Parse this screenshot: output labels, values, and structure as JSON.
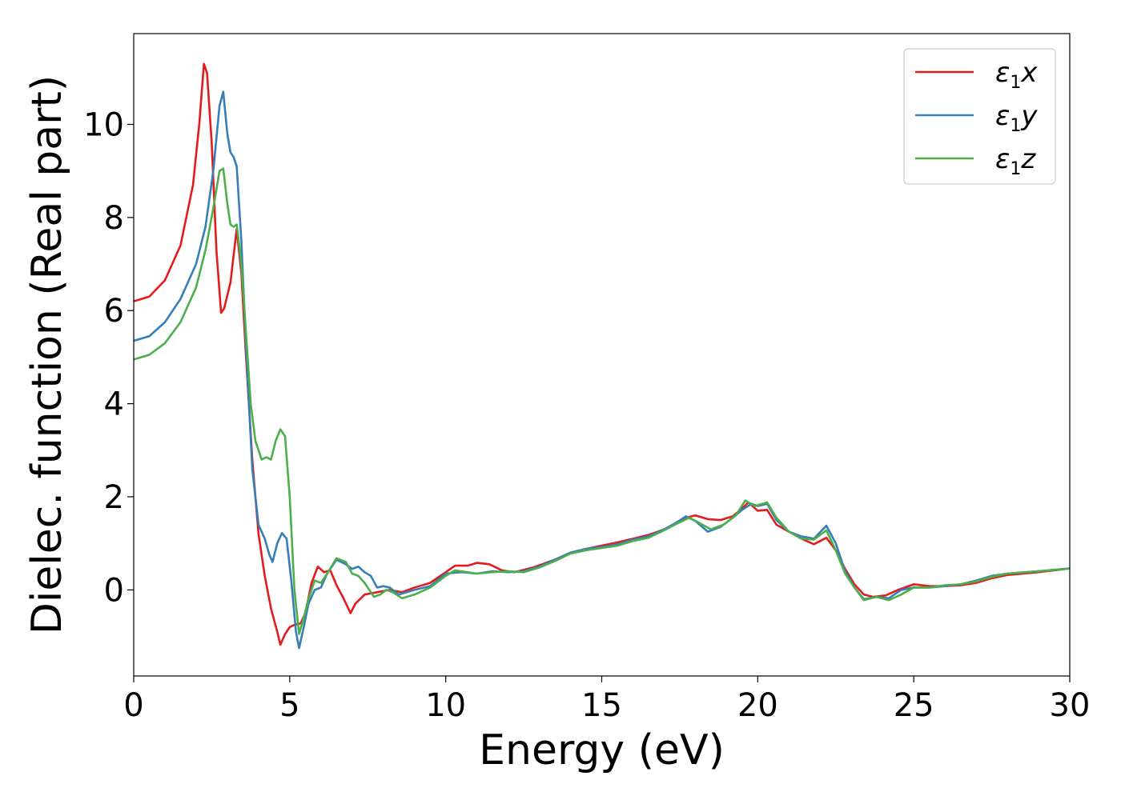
{
  "chart_data": {
    "type": "line",
    "xlabel": "Energy (eV)",
    "ylabel": "Dielec. function (Real part)",
    "xlim": [
      0,
      30
    ],
    "ylim": [
      -1.85,
      11.95
    ],
    "xticks": [
      0,
      5,
      10,
      15,
      20,
      25,
      30
    ],
    "xtick_labels": [
      "0",
      "5",
      "10",
      "15",
      "20",
      "25",
      "30"
    ],
    "yticks": [
      0,
      2,
      4,
      6,
      8,
      10
    ],
    "ytick_labels": [
      "0",
      "2",
      "4",
      "6",
      "8",
      "10"
    ],
    "grid": false,
    "legend_position": "top-right",
    "series": [
      {
        "name": "ε1x",
        "name_base": "ε",
        "name_sub": "1",
        "name_suffix": "x",
        "color": "#e41a1c",
        "points": [
          [
            0,
            6.2
          ],
          [
            0.5,
            6.3
          ],
          [
            1.0,
            6.65
          ],
          [
            1.5,
            7.4
          ],
          [
            1.9,
            8.7
          ],
          [
            2.1,
            10.0
          ],
          [
            2.25,
            11.3
          ],
          [
            2.35,
            11.1
          ],
          [
            2.5,
            9.6
          ],
          [
            2.65,
            7.3
          ],
          [
            2.8,
            5.95
          ],
          [
            2.9,
            6.05
          ],
          [
            3.1,
            6.6
          ],
          [
            3.3,
            7.75
          ],
          [
            3.45,
            6.8
          ],
          [
            3.6,
            5.0
          ],
          [
            3.8,
            2.8
          ],
          [
            4.0,
            1.2
          ],
          [
            4.2,
            0.3
          ],
          [
            4.4,
            -0.4
          ],
          [
            4.6,
            -0.9
          ],
          [
            4.7,
            -1.18
          ],
          [
            4.85,
            -0.95
          ],
          [
            5.0,
            -0.8
          ],
          [
            5.15,
            -0.75
          ],
          [
            5.35,
            -0.72
          ],
          [
            5.5,
            -0.5
          ],
          [
            5.7,
            0.15
          ],
          [
            5.9,
            0.5
          ],
          [
            6.1,
            0.38
          ],
          [
            6.3,
            0.42
          ],
          [
            6.5,
            0.1
          ],
          [
            6.7,
            -0.15
          ],
          [
            6.95,
            -0.5
          ],
          [
            7.1,
            -0.3
          ],
          [
            7.4,
            -0.1
          ],
          [
            7.8,
            -0.05
          ],
          [
            8.2,
            0.0
          ],
          [
            8.6,
            -0.05
          ],
          [
            9.0,
            0.05
          ],
          [
            9.5,
            0.15
          ],
          [
            10.0,
            0.38
          ],
          [
            10.3,
            0.52
          ],
          [
            10.7,
            0.52
          ],
          [
            11.0,
            0.58
          ],
          [
            11.4,
            0.55
          ],
          [
            11.8,
            0.42
          ],
          [
            12.2,
            0.38
          ],
          [
            12.8,
            0.48
          ],
          [
            13.5,
            0.65
          ],
          [
            14.0,
            0.8
          ],
          [
            14.5,
            0.88
          ],
          [
            15.0,
            0.95
          ],
          [
            15.5,
            1.02
          ],
          [
            16.0,
            1.1
          ],
          [
            16.5,
            1.18
          ],
          [
            17.0,
            1.3
          ],
          [
            17.4,
            1.42
          ],
          [
            17.7,
            1.55
          ],
          [
            18.0,
            1.6
          ],
          [
            18.4,
            1.52
          ],
          [
            18.8,
            1.5
          ],
          [
            19.2,
            1.58
          ],
          [
            19.5,
            1.75
          ],
          [
            19.7,
            1.88
          ],
          [
            20.0,
            1.7
          ],
          [
            20.3,
            1.72
          ],
          [
            20.6,
            1.4
          ],
          [
            21.0,
            1.25
          ],
          [
            21.4,
            1.1
          ],
          [
            21.8,
            0.98
          ],
          [
            22.2,
            1.12
          ],
          [
            22.5,
            0.85
          ],
          [
            22.8,
            0.45
          ],
          [
            23.1,
            0.12
          ],
          [
            23.4,
            -0.1
          ],
          [
            23.7,
            -0.15
          ],
          [
            24.1,
            -0.12
          ],
          [
            24.5,
            0.0
          ],
          [
            25.0,
            0.12
          ],
          [
            25.5,
            0.08
          ],
          [
            26.0,
            0.08
          ],
          [
            26.5,
            0.1
          ],
          [
            27.0,
            0.15
          ],
          [
            27.5,
            0.25
          ],
          [
            28.0,
            0.32
          ],
          [
            29.0,
            0.38
          ],
          [
            30.0,
            0.46
          ]
        ]
      },
      {
        "name": "ε1y",
        "name_base": "ε",
        "name_sub": "1",
        "name_suffix": "y",
        "color": "#377eb8",
        "points": [
          [
            0,
            5.35
          ],
          [
            0.5,
            5.45
          ],
          [
            1.0,
            5.75
          ],
          [
            1.5,
            6.25
          ],
          [
            2.0,
            7.0
          ],
          [
            2.3,
            7.8
          ],
          [
            2.55,
            9.0
          ],
          [
            2.75,
            10.4
          ],
          [
            2.87,
            10.7
          ],
          [
            3.0,
            9.8
          ],
          [
            3.1,
            9.4
          ],
          [
            3.2,
            9.3
          ],
          [
            3.3,
            9.1
          ],
          [
            3.45,
            7.5
          ],
          [
            3.6,
            5.2
          ],
          [
            3.8,
            2.6
          ],
          [
            4.0,
            1.4
          ],
          [
            4.2,
            1.1
          ],
          [
            4.35,
            0.75
          ],
          [
            4.45,
            0.6
          ],
          [
            4.6,
            1.0
          ],
          [
            4.75,
            1.22
          ],
          [
            4.9,
            1.1
          ],
          [
            5.05,
            0.2
          ],
          [
            5.2,
            -0.9
          ],
          [
            5.3,
            -1.25
          ],
          [
            5.45,
            -0.8
          ],
          [
            5.6,
            -0.3
          ],
          [
            5.8,
            0.0
          ],
          [
            6.0,
            0.05
          ],
          [
            6.2,
            0.35
          ],
          [
            6.5,
            0.65
          ],
          [
            6.8,
            0.55
          ],
          [
            7.0,
            0.45
          ],
          [
            7.2,
            0.5
          ],
          [
            7.4,
            0.38
          ],
          [
            7.6,
            0.3
          ],
          [
            7.8,
            0.05
          ],
          [
            8.0,
            0.08
          ],
          [
            8.2,
            0.05
          ],
          [
            8.5,
            -0.1
          ],
          [
            9.0,
            0.0
          ],
          [
            9.5,
            0.08
          ],
          [
            10.0,
            0.35
          ],
          [
            10.5,
            0.38
          ],
          [
            11.0,
            0.35
          ],
          [
            11.5,
            0.4
          ],
          [
            12.0,
            0.38
          ],
          [
            12.5,
            0.4
          ],
          [
            13.0,
            0.5
          ],
          [
            13.5,
            0.65
          ],
          [
            14.0,
            0.8
          ],
          [
            14.5,
            0.88
          ],
          [
            15.0,
            0.92
          ],
          [
            15.5,
            0.98
          ],
          [
            16.0,
            1.08
          ],
          [
            16.5,
            1.15
          ],
          [
            17.0,
            1.3
          ],
          [
            17.4,
            1.45
          ],
          [
            17.7,
            1.58
          ],
          [
            18.0,
            1.48
          ],
          [
            18.4,
            1.25
          ],
          [
            18.8,
            1.35
          ],
          [
            19.2,
            1.55
          ],
          [
            19.5,
            1.72
          ],
          [
            19.8,
            1.85
          ],
          [
            20.0,
            1.8
          ],
          [
            20.3,
            1.85
          ],
          [
            20.6,
            1.5
          ],
          [
            21.0,
            1.25
          ],
          [
            21.4,
            1.15
          ],
          [
            21.8,
            1.1
          ],
          [
            22.2,
            1.38
          ],
          [
            22.5,
            1.0
          ],
          [
            22.8,
            0.4
          ],
          [
            23.1,
            0.05
          ],
          [
            23.4,
            -0.2
          ],
          [
            23.8,
            -0.15
          ],
          [
            24.2,
            -0.18
          ],
          [
            24.6,
            0.0
          ],
          [
            25.0,
            0.05
          ],
          [
            25.5,
            0.05
          ],
          [
            26.0,
            0.08
          ],
          [
            26.5,
            0.12
          ],
          [
            27.0,
            0.2
          ],
          [
            27.5,
            0.3
          ],
          [
            28.0,
            0.35
          ],
          [
            29.0,
            0.4
          ],
          [
            30.0,
            0.46
          ]
        ]
      },
      {
        "name": "ε1z",
        "name_base": "ε",
        "name_sub": "1",
        "name_suffix": "z",
        "color": "#4daf4a",
        "points": [
          [
            0,
            4.95
          ],
          [
            0.5,
            5.05
          ],
          [
            1.0,
            5.3
          ],
          [
            1.5,
            5.75
          ],
          [
            2.0,
            6.5
          ],
          [
            2.3,
            7.3
          ],
          [
            2.55,
            8.2
          ],
          [
            2.75,
            9.0
          ],
          [
            2.87,
            9.05
          ],
          [
            3.0,
            8.3
          ],
          [
            3.1,
            7.85
          ],
          [
            3.2,
            7.8
          ],
          [
            3.3,
            7.85
          ],
          [
            3.45,
            7.0
          ],
          [
            3.6,
            5.5
          ],
          [
            3.75,
            4.0
          ],
          [
            3.9,
            3.2
          ],
          [
            4.1,
            2.8
          ],
          [
            4.25,
            2.85
          ],
          [
            4.4,
            2.8
          ],
          [
            4.55,
            3.2
          ],
          [
            4.7,
            3.45
          ],
          [
            4.85,
            3.3
          ],
          [
            5.0,
            2.0
          ],
          [
            5.15,
            0.0
          ],
          [
            5.3,
            -0.95
          ],
          [
            5.45,
            -0.6
          ],
          [
            5.6,
            -0.2
          ],
          [
            5.8,
            0.2
          ],
          [
            6.0,
            0.15
          ],
          [
            6.2,
            0.35
          ],
          [
            6.5,
            0.68
          ],
          [
            6.8,
            0.6
          ],
          [
            7.0,
            0.35
          ],
          [
            7.2,
            0.3
          ],
          [
            7.4,
            0.15
          ],
          [
            7.7,
            -0.15
          ],
          [
            7.9,
            -0.1
          ],
          [
            8.1,
            0.0
          ],
          [
            8.3,
            -0.05
          ],
          [
            8.6,
            -0.18
          ],
          [
            9.0,
            -0.1
          ],
          [
            9.5,
            0.05
          ],
          [
            10.0,
            0.3
          ],
          [
            10.3,
            0.42
          ],
          [
            10.7,
            0.38
          ],
          [
            11.0,
            0.35
          ],
          [
            11.5,
            0.38
          ],
          [
            12.0,
            0.4
          ],
          [
            12.5,
            0.38
          ],
          [
            13.0,
            0.48
          ],
          [
            13.5,
            0.62
          ],
          [
            14.0,
            0.78
          ],
          [
            14.5,
            0.85
          ],
          [
            15.0,
            0.9
          ],
          [
            15.5,
            0.95
          ],
          [
            16.0,
            1.05
          ],
          [
            16.5,
            1.12
          ],
          [
            17.0,
            1.28
          ],
          [
            17.4,
            1.42
          ],
          [
            17.8,
            1.55
          ],
          [
            18.1,
            1.45
          ],
          [
            18.5,
            1.3
          ],
          [
            18.9,
            1.4
          ],
          [
            19.3,
            1.6
          ],
          [
            19.6,
            1.92
          ],
          [
            19.9,
            1.8
          ],
          [
            20.3,
            1.88
          ],
          [
            20.6,
            1.55
          ],
          [
            21.0,
            1.25
          ],
          [
            21.4,
            1.1
          ],
          [
            21.8,
            1.08
          ],
          [
            22.2,
            1.28
          ],
          [
            22.5,
            0.85
          ],
          [
            22.8,
            0.35
          ],
          [
            23.1,
            0.05
          ],
          [
            23.4,
            -0.22
          ],
          [
            23.8,
            -0.15
          ],
          [
            24.2,
            -0.22
          ],
          [
            24.6,
            -0.1
          ],
          [
            25.0,
            0.05
          ],
          [
            25.5,
            0.05
          ],
          [
            26.0,
            0.1
          ],
          [
            26.5,
            0.12
          ],
          [
            27.0,
            0.18
          ],
          [
            27.5,
            0.28
          ],
          [
            28.0,
            0.35
          ],
          [
            29.0,
            0.4
          ],
          [
            30.0,
            0.46
          ]
        ]
      }
    ]
  }
}
